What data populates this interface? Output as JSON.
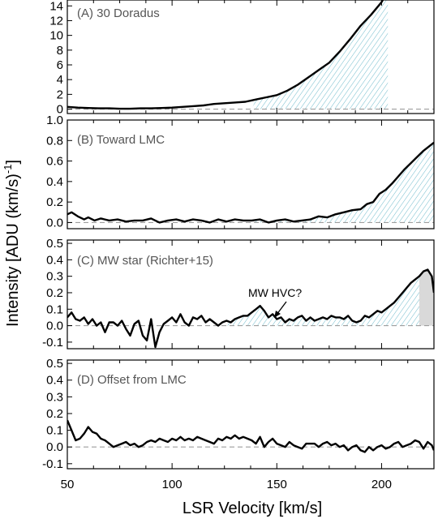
{
  "chart_data": {
    "type": "line",
    "xlabel": "LSR Velocity [km/s]",
    "ylabel": "Intensity [ADU (km/s)",
    "ylabel_superscript": "-1",
    "ylabel_close": "]",
    "xlim": [
      50,
      225
    ],
    "x_ticks": [
      {
        "value": 50,
        "label": "50"
      },
      {
        "value": 100,
        "label": "100"
      },
      {
        "value": 150,
        "label": "150"
      },
      {
        "value": 200,
        "label": "200"
      }
    ],
    "colors": {
      "line": "#000000",
      "hatch": "#5fb3c6",
      "zero": "#9e9e9e",
      "shade": "#d9d9d9"
    },
    "panels": [
      {
        "label": "(A) 30 Doradus",
        "ylim": [
          -0.6,
          14.8
        ],
        "y_ticks": [
          {
            "value": 0,
            "label": "0"
          },
          {
            "value": 2,
            "label": "2"
          },
          {
            "value": 4,
            "label": "4"
          },
          {
            "value": 6,
            "label": "6"
          },
          {
            "value": 8,
            "label": "8"
          },
          {
            "value": 10,
            "label": "10"
          },
          {
            "value": 12,
            "label": "12"
          },
          {
            "value": 14,
            "label": "14"
          }
        ],
        "hatch_from": 138,
        "x": [
          50,
          55,
          60,
          65,
          70,
          75,
          80,
          85,
          90,
          95,
          100,
          105,
          110,
          115,
          120,
          125,
          130,
          135,
          140,
          145,
          150,
          155,
          160,
          165,
          170,
          175,
          180,
          185,
          190,
          195,
          200,
          203
        ],
        "y": [
          0.3,
          0.2,
          0.15,
          0.1,
          0.1,
          0.05,
          0.05,
          0.1,
          0.1,
          0.15,
          0.2,
          0.3,
          0.4,
          0.5,
          0.7,
          0.8,
          0.9,
          1.0,
          1.3,
          1.6,
          1.9,
          2.5,
          3.3,
          4.3,
          5.3,
          6.3,
          7.8,
          9.5,
          11.3,
          12.8,
          14.5,
          16.0
        ]
      },
      {
        "label": "(B) Toward LMC",
        "ylim": [
          -0.06,
          1.0
        ],
        "y_ticks": [
          {
            "value": 0,
            "label": "0.0"
          },
          {
            "value": 0.2,
            "label": "0.2"
          },
          {
            "value": 0.4,
            "label": "0.4"
          },
          {
            "value": 0.6,
            "label": "0.6"
          },
          {
            "value": 0.8,
            "label": "0.8"
          },
          {
            "value": 1.0,
            "label": "1.0"
          }
        ],
        "hatch_from": 138,
        "x": [
          50,
          52,
          55,
          58,
          60,
          63,
          66,
          70,
          74,
          78,
          82,
          86,
          90,
          94,
          98,
          102,
          106,
          110,
          114,
          118,
          122,
          126,
          130,
          134,
          138,
          142,
          146,
          150,
          154,
          158,
          162,
          166,
          170,
          174,
          178,
          182,
          186,
          190,
          193,
          196,
          199,
          202,
          205,
          208,
          211,
          214,
          217,
          220,
          225
        ],
        "y": [
          0.08,
          0.1,
          0.06,
          0.03,
          0.05,
          0.02,
          0.04,
          0.02,
          0.03,
          0.01,
          0.02,
          0.02,
          0.04,
          0.0,
          0.02,
          0.03,
          0.01,
          0.03,
          0.02,
          0.0,
          0.03,
          0.01,
          0.03,
          0.02,
          0.02,
          0.03,
          0.0,
          0.02,
          0.03,
          0.01,
          0.02,
          0.03,
          0.06,
          0.05,
          0.08,
          0.1,
          0.12,
          0.13,
          0.18,
          0.2,
          0.28,
          0.32,
          0.38,
          0.45,
          0.52,
          0.58,
          0.64,
          0.7,
          0.78
        ]
      },
      {
        "label": "(C) MW star (Richter+15)",
        "ylim": [
          -0.14,
          0.52
        ],
        "y_ticks": [
          {
            "value": -0.1,
            "label": "-0.1"
          },
          {
            "value": 0,
            "label": "0.0"
          },
          {
            "value": 0.1,
            "label": "0.1"
          },
          {
            "value": 0.2,
            "label": "0.2"
          },
          {
            "value": 0.3,
            "label": "0.3"
          },
          {
            "value": 0.4,
            "label": "0.4"
          },
          {
            "value": 0.5,
            "label": "0.5"
          }
        ],
        "hatch_from": 125,
        "shade_from": 218,
        "annotation": "MW HVC?",
        "x": [
          50,
          52,
          54,
          56,
          58,
          60,
          62,
          64,
          66,
          68,
          70,
          72,
          74,
          76,
          78,
          80,
          82,
          84,
          86,
          88,
          90,
          92,
          94,
          96,
          98,
          100,
          102,
          104,
          106,
          108,
          110,
          112,
          114,
          116,
          118,
          120,
          122,
          124,
          126,
          128,
          130,
          132,
          134,
          136,
          138,
          140,
          142,
          144,
          146,
          148,
          150,
          152,
          154,
          156,
          158,
          160,
          162,
          164,
          166,
          168,
          170,
          172,
          174,
          176,
          178,
          180,
          182,
          184,
          186,
          188,
          190,
          192,
          194,
          196,
          198,
          200,
          202,
          204,
          206,
          208,
          210,
          212,
          214,
          216,
          218,
          220,
          222,
          224,
          225
        ],
        "y": [
          0.05,
          0.08,
          0.04,
          0.03,
          0.05,
          0.01,
          0.04,
          0.0,
          0.02,
          -0.04,
          0.02,
          0.02,
          0.0,
          0.03,
          -0.02,
          -0.06,
          0.01,
          0.03,
          -0.06,
          -0.09,
          0.04,
          -0.13,
          -0.04,
          0.01,
          0.03,
          0.05,
          0.02,
          0.07,
          0.02,
          0.0,
          0.05,
          0.04,
          0.06,
          0.02,
          0.04,
          0.02,
          0.0,
          0.02,
          0.03,
          0.02,
          0.04,
          0.05,
          0.06,
          0.06,
          0.08,
          0.1,
          0.12,
          0.09,
          0.05,
          0.07,
          0.04,
          0.05,
          0.02,
          0.04,
          0.03,
          0.05,
          0.06,
          0.03,
          0.05,
          0.03,
          0.04,
          0.05,
          0.04,
          0.06,
          0.05,
          0.05,
          0.04,
          0.06,
          0.03,
          0.02,
          0.03,
          0.06,
          0.05,
          0.07,
          0.09,
          0.08,
          0.1,
          0.12,
          0.14,
          0.17,
          0.2,
          0.23,
          0.26,
          0.28,
          0.3,
          0.33,
          0.34,
          0.3,
          0.2
        ]
      },
      {
        "label": "(D) Offset from LMC",
        "ylim": [
          -0.13,
          0.52
        ],
        "y_ticks": [
          {
            "value": -0.1,
            "label": "-0.1"
          },
          {
            "value": 0,
            "label": "0.0"
          },
          {
            "value": 0.1,
            "label": "0.1"
          },
          {
            "value": 0.2,
            "label": "0.2"
          },
          {
            "value": 0.3,
            "label": "0.3"
          },
          {
            "value": 0.4,
            "label": "0.4"
          },
          {
            "value": 0.5,
            "label": "0.5"
          }
        ],
        "x": [
          50,
          52,
          54,
          56,
          58,
          60,
          62,
          64,
          66,
          68,
          70,
          72,
          74,
          76,
          78,
          80,
          82,
          84,
          86,
          88,
          90,
          92,
          94,
          96,
          98,
          100,
          102,
          104,
          106,
          108,
          110,
          112,
          114,
          116,
          118,
          120,
          122,
          124,
          126,
          128,
          130,
          132,
          134,
          136,
          138,
          140,
          142,
          144,
          146,
          148,
          150,
          152,
          154,
          156,
          158,
          160,
          162,
          164,
          166,
          168,
          170,
          172,
          174,
          176,
          178,
          180,
          182,
          184,
          186,
          188,
          190,
          192,
          194,
          196,
          198,
          200,
          202,
          204,
          206,
          208,
          210,
          212,
          214,
          216,
          218,
          220,
          222,
          224,
          225
        ],
        "y": [
          0.16,
          0.1,
          0.04,
          0.05,
          0.08,
          0.12,
          0.09,
          0.08,
          0.05,
          0.04,
          0.02,
          0.0,
          0.01,
          0.02,
          0.03,
          0.01,
          0.02,
          0.0,
          0.01,
          0.03,
          0.04,
          0.03,
          0.05,
          0.04,
          0.03,
          0.05,
          0.04,
          0.06,
          0.04,
          0.05,
          0.04,
          0.06,
          0.05,
          0.04,
          0.03,
          0.02,
          0.05,
          0.04,
          0.06,
          0.05,
          0.07,
          0.05,
          0.06,
          0.05,
          0.04,
          0.02,
          0.06,
          0.0,
          0.03,
          0.05,
          0.02,
          0.01,
          0.0,
          0.03,
          0.01,
          0.0,
          -0.01,
          0.02,
          0.02,
          0.02,
          0.0,
          0.02,
          0.03,
          0.01,
          0.02,
          0.0,
          0.01,
          -0.02,
          0.0,
          0.01,
          -0.02,
          -0.03,
          0.0,
          -0.02,
          0.0,
          0.01,
          -0.01,
          0.0,
          0.02,
          0.03,
          0.0,
          0.01,
          0.02,
          0.04,
          0.03,
          -0.01,
          0.03,
          0.01,
          -0.02
        ]
      }
    ]
  }
}
